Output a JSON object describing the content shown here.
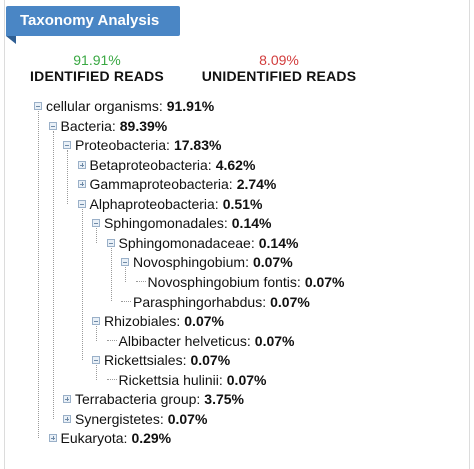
{
  "panel": {
    "title": "Taxonomy Analysis"
  },
  "stats": {
    "identified": {
      "pct": "91.91%",
      "label": "IDENTIFIED READS"
    },
    "unidentified": {
      "pct": "8.09%",
      "label": "UNIDENTIFIED READS"
    }
  },
  "tree": [
    {
      "name": "cellular organisms:",
      "value": "91.91%",
      "level": 0,
      "toggle": "minus"
    },
    {
      "name": "Bacteria:",
      "value": "89.39%",
      "level": 1,
      "toggle": "minus"
    },
    {
      "name": "Proteobacteria:",
      "value": "17.83%",
      "level": 2,
      "toggle": "minus"
    },
    {
      "name": "Betaproteobacteria:",
      "value": "4.62%",
      "level": 3,
      "toggle": "plus"
    },
    {
      "name": "Gammaproteobacteria:",
      "value": "2.74%",
      "level": 3,
      "toggle": "plus"
    },
    {
      "name": "Alphaproteobacteria:",
      "value": "0.51%",
      "level": 3,
      "toggle": "minus"
    },
    {
      "name": "Sphingomonadales:",
      "value": "0.14%",
      "level": 4,
      "toggle": "minus"
    },
    {
      "name": "Sphingomonadaceae:",
      "value": "0.14%",
      "level": 5,
      "toggle": "minus"
    },
    {
      "name": "Novosphingobium:",
      "value": "0.07%",
      "level": 6,
      "toggle": "minus"
    },
    {
      "name": "Novosphingobium fontis:",
      "value": "0.07%",
      "level": 7,
      "toggle": "leaf"
    },
    {
      "name": "Parasphingorhabdus:",
      "value": "0.07%",
      "level": 6,
      "toggle": "leaf"
    },
    {
      "name": "Rhizobiales:",
      "value": "0.07%",
      "level": 4,
      "toggle": "minus"
    },
    {
      "name": "Albibacter helveticus:",
      "value": "0.07%",
      "level": 5,
      "toggle": "leaf"
    },
    {
      "name": "Rickettsiales:",
      "value": "0.07%",
      "level": 4,
      "toggle": "minus"
    },
    {
      "name": "Rickettsia hulinii:",
      "value": "0.07%",
      "level": 5,
      "toggle": "leaf"
    },
    {
      "name": "Terrabacteria group:",
      "value": "3.75%",
      "level": 2,
      "toggle": "plus"
    },
    {
      "name": "Synergistetes:",
      "value": "0.07%",
      "level": 2,
      "toggle": "plus"
    },
    {
      "name": "Eukaryota:",
      "value": "0.29%",
      "level": 1,
      "toggle": "plus"
    }
  ]
}
